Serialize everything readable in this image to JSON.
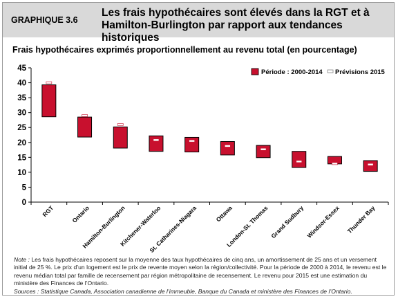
{
  "header": {
    "graph_label": "GRAPHIQUE 3.6",
    "title_line1": "Les frais hypothécaires sont élevés dans la RGT et à",
    "title_line2": "Hamilton-Burlington par rapport aux tendances historiques"
  },
  "subtitle": "Frais hypothécaires exprimés proportionnellement au revenu total (en pourcentage)",
  "colors": {
    "range_fill": "#c8102e",
    "range_stroke": "#000000",
    "forecast_marker": "#ffffff"
  },
  "chart_data": {
    "type": "bar",
    "categories": [
      "RGT",
      "Ontario",
      "Hamilton-Burlington",
      "Kitchener-Waterloo",
      "St. Catharines-Niagara",
      "Ottawa",
      "London-St. Thomas",
      "Grand Sudbury",
      "Windsor-Essex",
      "Thunder Bay"
    ],
    "series": [
      {
        "name": "Période : 2000-2014",
        "low": [
          28.6,
          21.8,
          18.1,
          17.0,
          16.8,
          15.8,
          14.9,
          11.6,
          12.8,
          10.3
        ],
        "high": [
          39.3,
          28.5,
          25.2,
          22.2,
          21.7,
          20.3,
          19.0,
          17.0,
          15.3,
          13.9
        ]
      },
      {
        "name": "Prévisions 2015",
        "values": [
          40.0,
          29.0,
          26.0,
          20.8,
          20.5,
          18.8,
          17.7,
          13.6,
          12.9,
          12.6
        ]
      }
    ],
    "ylim": [
      0,
      45
    ],
    "yticks": [
      "0",
      "5",
      "10",
      "15",
      "20",
      "25",
      "30",
      "35",
      "40",
      "45"
    ],
    "legend_position": "top-right"
  },
  "notes": {
    "note_label": "Note :",
    "note_text": " Les frais hypothécaires reposent sur la moyenne des taux hypothécaires de cinq ans, un amortissement de 25 ans et un versement initial de 25 %. Le prix d’un logement est le prix de revente moyen selon la région/collectivité. Pour la période de 2000 à 2014, le revenu est le revenu médian total par famille de recensement par région métropolitaine de recensement. Le revenu pour 2015 est une estimation du ministère des Finances de l’Ontario.",
    "sources_label": "Sources :",
    "sources_text": " Statistique Canada, Association canadienne de l’immeuble, Banque du Canada et ministère des Finances de l’Ontario."
  }
}
